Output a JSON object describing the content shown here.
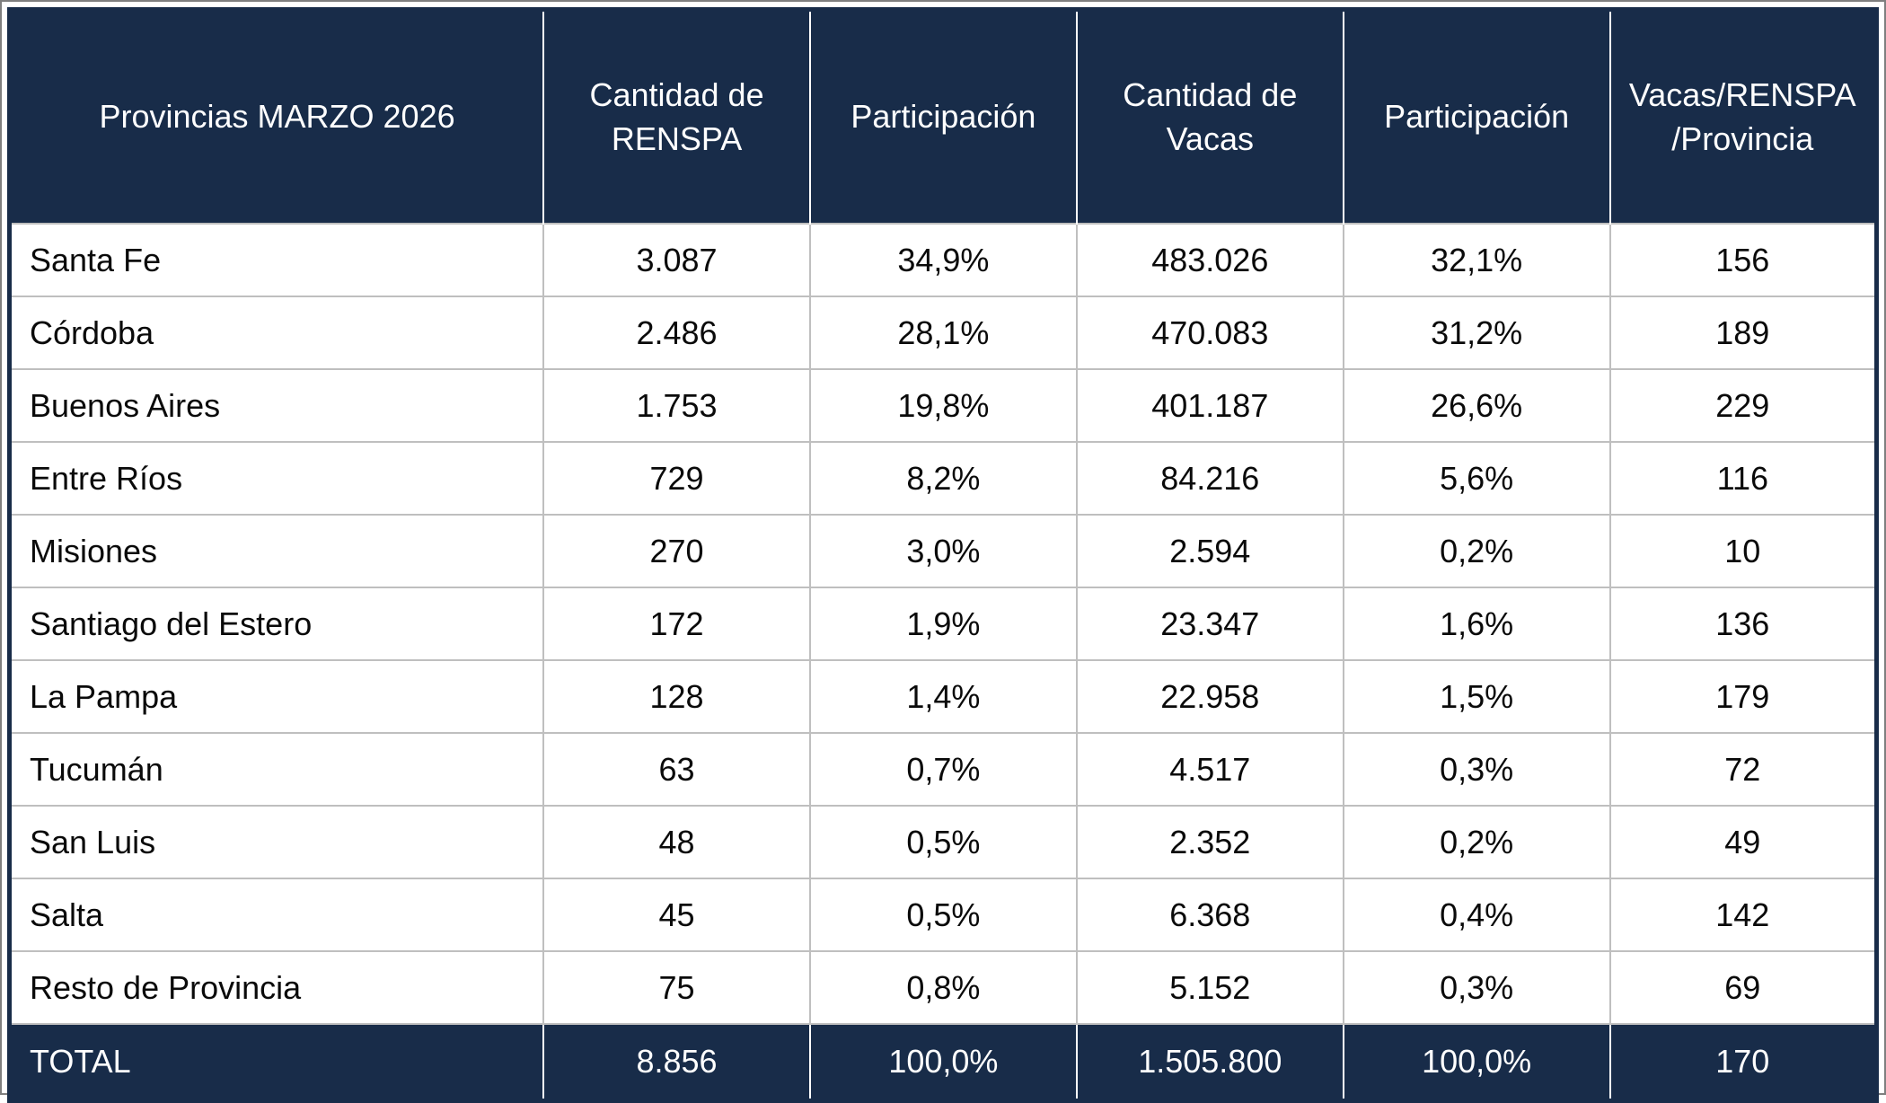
{
  "colors": {
    "header_bg": "#182C49",
    "header_text": "#FFFFFF",
    "body_text": "#0A0A0A",
    "grid_line": "#BFBFBF",
    "outer_border": "#182C49"
  },
  "chart_data": {
    "type": "table",
    "title": "Provincias MARZO 2026",
    "columns": [
      "Provincias MARZO 2026",
      "Cantidad de RENSPA",
      "Participación",
      "Cantidad de Vacas",
      "Participación",
      "Vacas/RENSPA /Provincia"
    ],
    "rows": [
      [
        "Santa Fe",
        "3.087",
        "34,9%",
        "483.026",
        "32,1%",
        "156"
      ],
      [
        "Córdoba",
        "2.486",
        "28,1%",
        "470.083",
        "31,2%",
        "189"
      ],
      [
        "Buenos Aires",
        "1.753",
        "19,8%",
        "401.187",
        "26,6%",
        "229"
      ],
      [
        "Entre Ríos",
        "729",
        "8,2%",
        "84.216",
        "5,6%",
        "116"
      ],
      [
        "Misiones",
        "270",
        "3,0%",
        "2.594",
        "0,2%",
        "10"
      ],
      [
        "Santiago del Estero",
        "172",
        "1,9%",
        "23.347",
        "1,6%",
        "136"
      ],
      [
        "La Pampa",
        "128",
        "1,4%",
        "22.958",
        "1,5%",
        "179"
      ],
      [
        "Tucumán",
        "63",
        "0,7%",
        "4.517",
        "0,3%",
        "72"
      ],
      [
        "San Luis",
        "48",
        "0,5%",
        "2.352",
        "0,2%",
        "49"
      ],
      [
        "Salta",
        "45",
        "0,5%",
        "6.368",
        "0,4%",
        "142"
      ],
      [
        "Resto de Provincia",
        "75",
        "0,8%",
        "5.152",
        "0,3%",
        "69"
      ]
    ],
    "total_row": [
      "TOTAL",
      "8.856",
      "100,0%",
      "1.505.800",
      "100,0%",
      "170"
    ]
  }
}
